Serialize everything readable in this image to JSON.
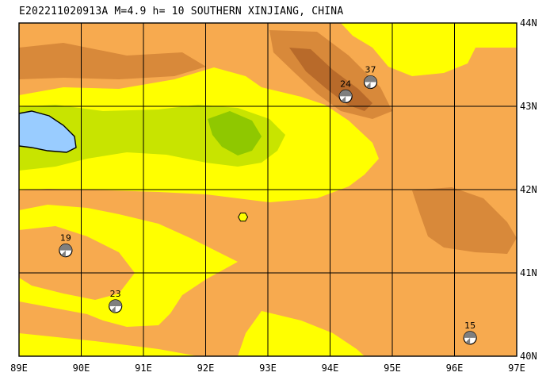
{
  "title": "E202211020913A M=4.9 h= 10 SOUTHERN XINJIANG, CHINA",
  "lon_labels": [
    "89E",
    "90E",
    "91E",
    "92E",
    "93E",
    "94E",
    "95E",
    "96E",
    "97E"
  ],
  "lat_labels": [
    "44N",
    "43N",
    "42N",
    "41N",
    "40N"
  ],
  "extent": {
    "lon": [
      89,
      97
    ],
    "lat": [
      40,
      44
    ]
  },
  "epicenter": {
    "lon": 92.6,
    "lat": 41.67,
    "color": "#ffff00"
  },
  "mechanisms": [
    {
      "depth": "24",
      "lon": 94.25,
      "lat": 43.12
    },
    {
      "depth": "37",
      "lon": 94.65,
      "lat": 43.29
    },
    {
      "depth": "19",
      "lon": 89.75,
      "lat": 41.27
    },
    {
      "depth": "23",
      "lon": 90.55,
      "lat": 40.6
    },
    {
      "depth": "15",
      "lon": 96.25,
      "lat": 40.22
    }
  ],
  "colors": {
    "lowland_yellow": "#ffff00",
    "plain_orange": "#f7aa4f",
    "mountain_brown": "#d8893a",
    "peak_brown": "#b86a2a",
    "vegetation_green": "#c8e400",
    "dark_green": "#8fc800",
    "lake_blue": "#99ccff",
    "grid_line": "#000000"
  }
}
